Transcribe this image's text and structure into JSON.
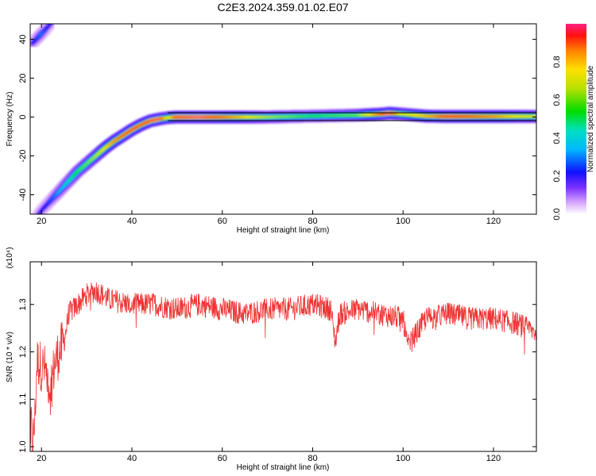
{
  "title": "C2E3.2024.359.01.02.E07",
  "chart_data": [
    {
      "type": "heatmap",
      "title": "C2E3.2024.359.01.02.E07",
      "xlabel": "Height of straight line (km)",
      "ylabel": "Frequency (Hz)",
      "xlim": [
        17.5,
        129.5
      ],
      "ylim": [
        -50,
        48
      ],
      "x_ticks": [
        20,
        40,
        60,
        80,
        100,
        120
      ],
      "y_ticks": [
        -40,
        -20,
        0,
        20,
        40
      ],
      "colorbar": {
        "label": "Normalized spectral amplitude",
        "range": [
          0,
          1
        ],
        "ticks": [
          "0.0",
          "0.2",
          "0.4",
          "0.6",
          "0.8"
        ]
      },
      "ridge": {
        "x": [
          18.5,
          20,
          22,
          24,
          26,
          28,
          30,
          32,
          34,
          36,
          38,
          40,
          42,
          44,
          46,
          48,
          50,
          55,
          60,
          70,
          80,
          90,
          95,
          97,
          100,
          105,
          110,
          115,
          120,
          125,
          129.5
        ],
        "y": [
          -53,
          -48,
          -43,
          -38,
          -33,
          -28,
          -24,
          -20,
          -16,
          -12.5,
          -9.5,
          -6.5,
          -4,
          -2,
          -1,
          -0.3,
          0,
          0,
          0,
          0,
          0.5,
          1,
          1.5,
          2,
          1.5,
          0.5,
          0.3,
          0.3,
          0.3,
          0.3,
          0.3
        ],
        "amplitude": [
          0.2,
          0.2,
          0.25,
          0.35,
          0.45,
          0.55,
          0.6,
          0.65,
          0.75,
          0.85,
          0.9,
          0.95,
          0.9,
          0.95,
          1.0,
          0.7,
          0.95,
          1.0,
          0.9,
          0.65,
          0.55,
          0.6,
          0.9,
          1.0,
          0.7,
          0.8,
          0.95,
          0.9,
          0.85,
          0.75,
          0.7
        ]
      },
      "upper_ridge": {
        "x": [
          18,
          19,
          20,
          21,
          22
        ],
        "y": [
          38,
          40.5,
          43,
          45.5,
          48
        ],
        "amplitude": [
          0.2,
          0.25,
          0.3,
          0.25,
          0.2
        ]
      }
    },
    {
      "type": "line",
      "xlabel": "Height of straight line (km)",
      "ylabel": "SNR (10 * v/v)",
      "y_multiplier": "(x10⁴)",
      "xlim": [
        17.5,
        129.5
      ],
      "ylim": [
        0.99,
        1.39
      ],
      "x_ticks": [
        20,
        40,
        60,
        80,
        100,
        120
      ],
      "y_ticks": [
        "1.0",
        "1.1",
        "1.2",
        "1.3"
      ],
      "series": [
        {
          "color": "#ee3333",
          "x": [
            17.5,
            18,
            18.5,
            19,
            20,
            21,
            22,
            23,
            24,
            25,
            26,
            28,
            30,
            32,
            35,
            40,
            45,
            50,
            55,
            60,
            65,
            70,
            75,
            80,
            84,
            85,
            86,
            90,
            95,
            100,
            101,
            105,
            110,
            115,
            120,
            125,
            129.5
          ],
          "y": [
            1.08,
            1.0,
            1.05,
            1.18,
            1.17,
            1.16,
            1.12,
            1.18,
            1.2,
            1.22,
            1.28,
            1.3,
            1.32,
            1.33,
            1.31,
            1.3,
            1.3,
            1.29,
            1.3,
            1.29,
            1.28,
            1.29,
            1.29,
            1.3,
            1.29,
            1.22,
            1.28,
            1.29,
            1.28,
            1.27,
            1.21,
            1.27,
            1.28,
            1.27,
            1.27,
            1.26,
            1.24
          ],
          "noise": 0.025
        }
      ]
    }
  ]
}
